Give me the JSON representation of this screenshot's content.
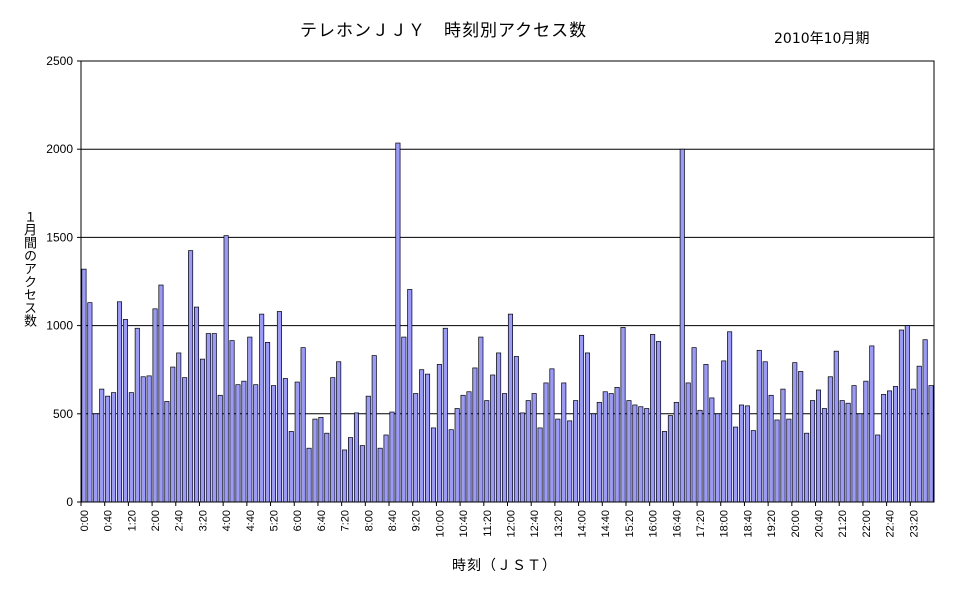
{
  "chart_data": {
    "type": "bar",
    "title": "テレホンＪＪＹ　時刻別アクセス数",
    "subtitle": "2010年10月期",
    "xlabel": "時刻（ＪＳＴ）",
    "ylabel": "１月間のアクセス数",
    "ylim": [
      0,
      2500
    ],
    "yticks": [
      0,
      500,
      1000,
      1500,
      2000,
      2500
    ],
    "grid": true,
    "bar_color": "#9999ff",
    "x_tick_labels": [
      "0:00",
      "0:40",
      "1:20",
      "2:00",
      "2:40",
      "3:20",
      "4:00",
      "4:40",
      "5:20",
      "6:00",
      "6:40",
      "7:20",
      "8:00",
      "8:40",
      "9:20",
      "10:00",
      "10:40",
      "11:20",
      "12:00",
      "12:40",
      "13:20",
      "14:00",
      "14:40",
      "15:20",
      "16:00",
      "16:40",
      "17:20",
      "18:00",
      "18:40",
      "19:20",
      "20:00",
      "20:40",
      "21:20",
      "22:00",
      "22:40",
      "23:20"
    ],
    "values": [
      1320,
      1130,
      500,
      640,
      600,
      620,
      1135,
      1035,
      620,
      985,
      710,
      715,
      1095,
      1230,
      570,
      765,
      845,
      705,
      1425,
      1105,
      810,
      955,
      955,
      605,
      1510,
      915,
      665,
      685,
      935,
      665,
      1065,
      905,
      660,
      1080,
      700,
      400,
      680,
      875,
      305,
      470,
      480,
      390,
      705,
      795,
      295,
      365,
      505,
      320,
      600,
      830,
      305,
      380,
      510,
      2035,
      935,
      1205,
      615,
      750,
      725,
      420,
      780,
      985,
      410,
      530,
      605,
      625,
      760,
      935,
      575,
      720,
      845,
      615,
      1065,
      825,
      505,
      575,
      615,
      420,
      675,
      755,
      470,
      675,
      460,
      575,
      945,
      845,
      500,
      565,
      625,
      615,
      650,
      990,
      575,
      550,
      540,
      530,
      950,
      910,
      400,
      490,
      565,
      2000,
      675,
      875,
      520,
      780,
      590,
      500,
      800,
      965,
      425,
      550,
      545,
      405,
      860,
      795,
      605,
      465,
      640,
      470,
      790,
      740,
      390,
      575,
      635,
      530,
      710,
      855,
      575,
      560,
      660,
      500,
      685,
      885,
      380,
      610,
      630,
      655,
      975,
      1000,
      640,
      770,
      920,
      660
    ]
  }
}
